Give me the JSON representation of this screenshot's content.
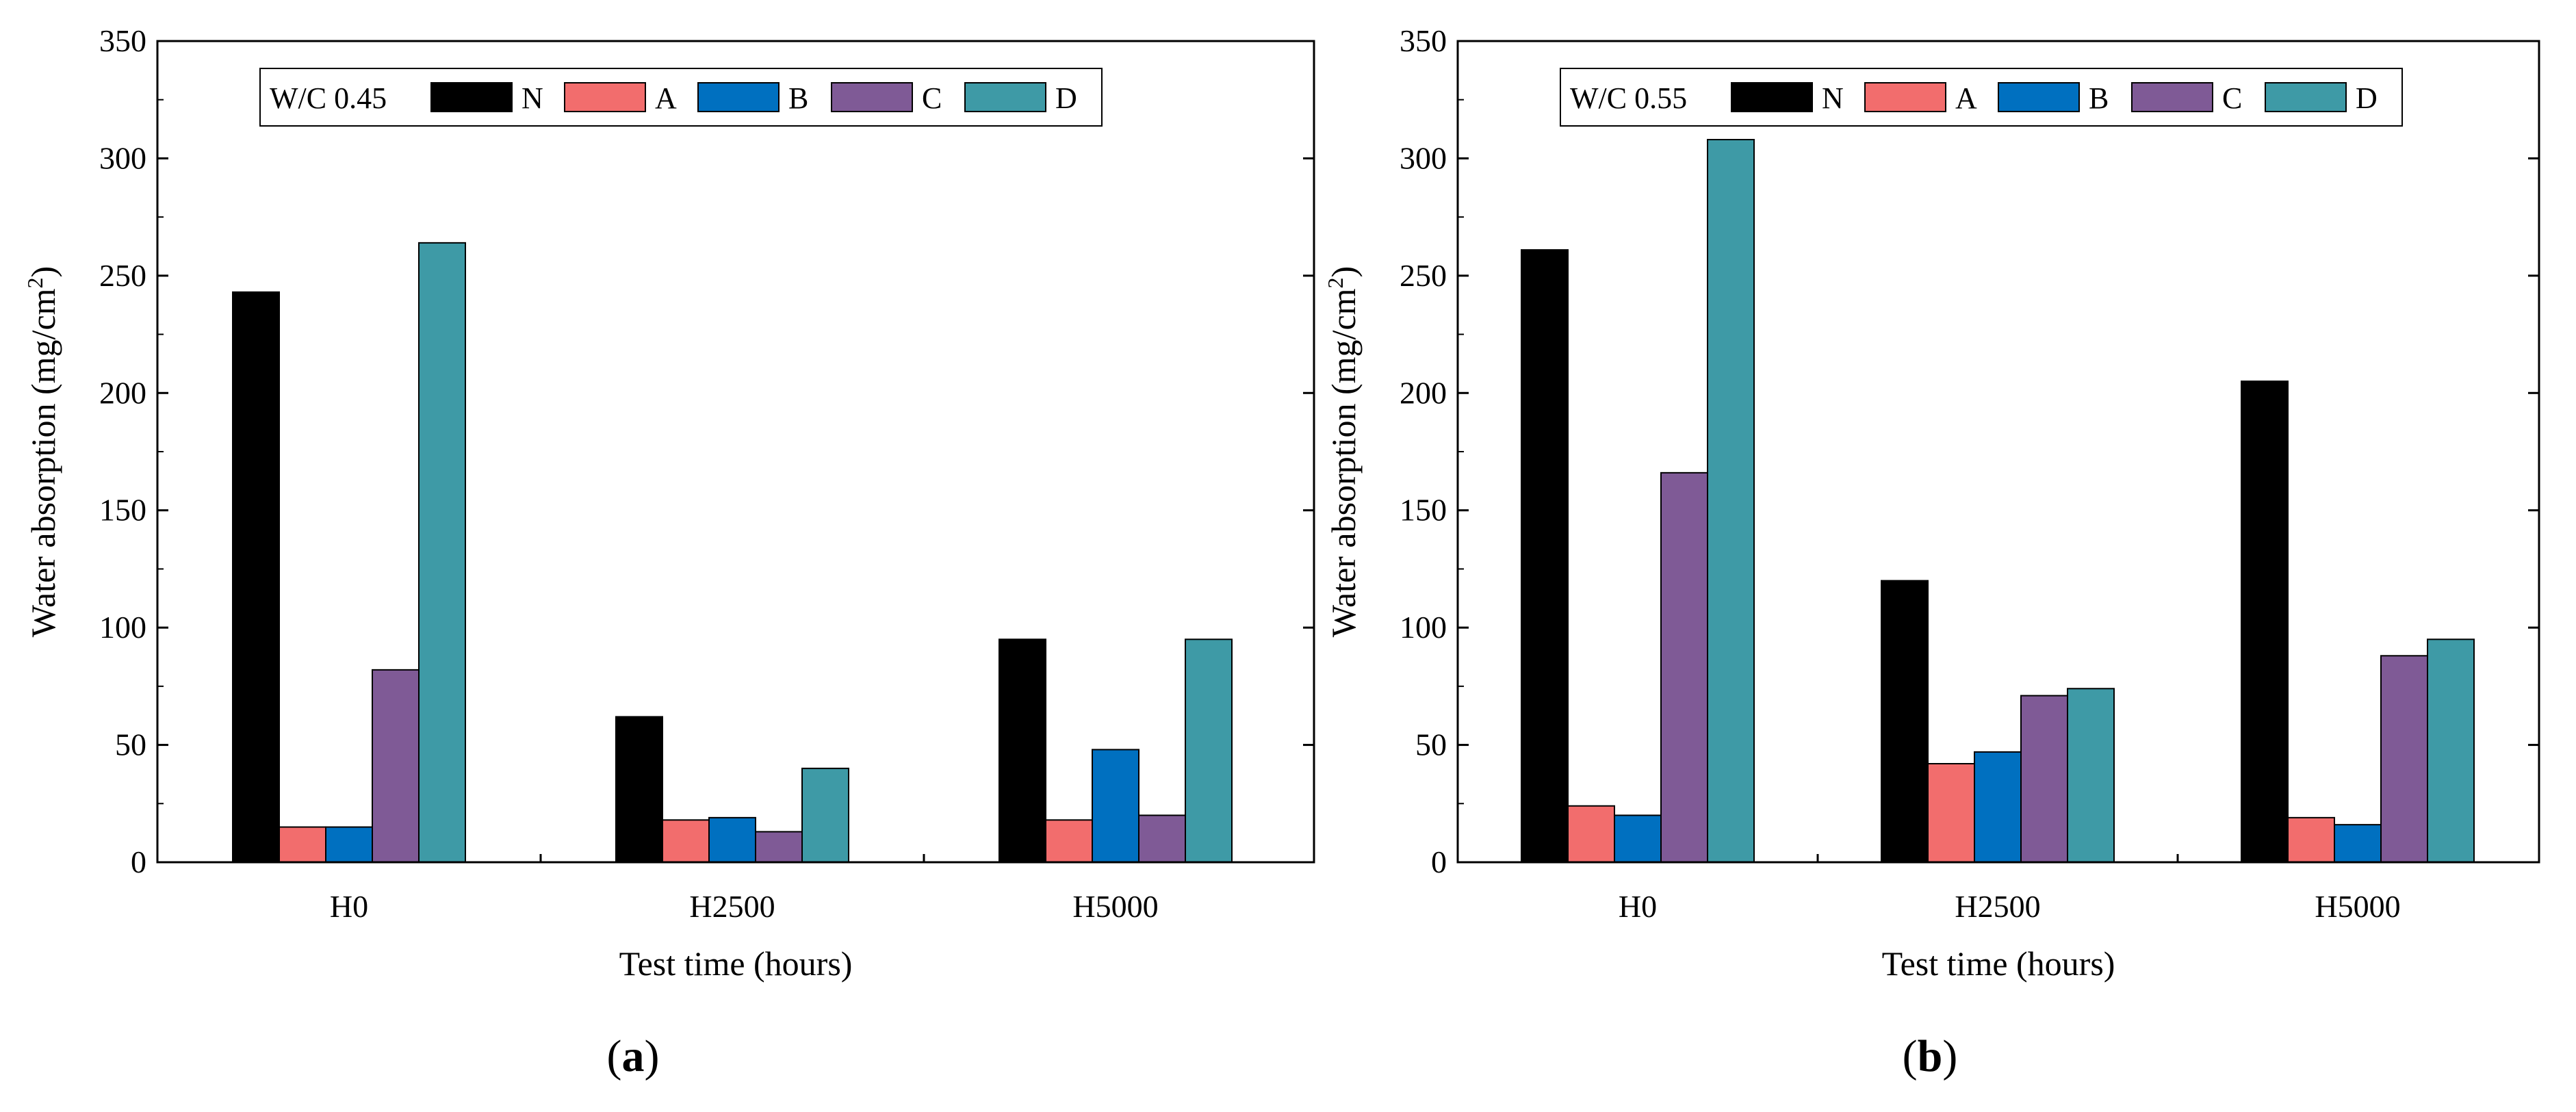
{
  "chart_data": [
    {
      "type": "bar",
      "panel_label": "a",
      "categories": [
        "H0",
        "H2500",
        "H5000"
      ],
      "series": [
        {
          "name": "N",
          "color": "#000000",
          "values": [
            243,
            62,
            95
          ]
        },
        {
          "name": "A",
          "color": "#f26d6d",
          "values": [
            15,
            18,
            18
          ]
        },
        {
          "name": "B",
          "color": "#0070c0",
          "values": [
            15,
            19,
            48
          ]
        },
        {
          "name": "C",
          "color": "#7f5a96",
          "values": [
            82,
            13,
            20
          ]
        },
        {
          "name": "D",
          "color": "#3e9aa6",
          "values": [
            264,
            40,
            95
          ]
        }
      ],
      "legend_title": "W/C 0.45",
      "xlabel": "Test time (hours)",
      "ylabel_main": "Water absorption (mg/cm",
      "ylabel_sup": "2",
      "ylabel_tail": ")",
      "ylim": [
        0,
        350
      ],
      "yticks": [
        0,
        50,
        100,
        150,
        200,
        250,
        300,
        350
      ],
      "legend_position": "top"
    },
    {
      "type": "bar",
      "panel_label": "b",
      "categories": [
        "H0",
        "H2500",
        "H5000"
      ],
      "series": [
        {
          "name": "N",
          "color": "#000000",
          "values": [
            261,
            120,
            205
          ]
        },
        {
          "name": "A",
          "color": "#f26d6d",
          "values": [
            24,
            42,
            19
          ]
        },
        {
          "name": "B",
          "color": "#0070c0",
          "values": [
            20,
            47,
            16
          ]
        },
        {
          "name": "C",
          "color": "#7f5a96",
          "values": [
            166,
            71,
            88
          ]
        },
        {
          "name": "D",
          "color": "#3e9aa6",
          "values": [
            308,
            74,
            95
          ]
        }
      ],
      "legend_title": "W/C 0.55",
      "xlabel": "Test time (hours)",
      "ylabel_main": "Water absorption (mg/cm",
      "ylabel_sup": "2",
      "ylabel_tail": ")",
      "ylim": [
        0,
        350
      ],
      "yticks": [
        0,
        50,
        100,
        150,
        200,
        250,
        300,
        350
      ],
      "legend_position": "top"
    }
  ]
}
